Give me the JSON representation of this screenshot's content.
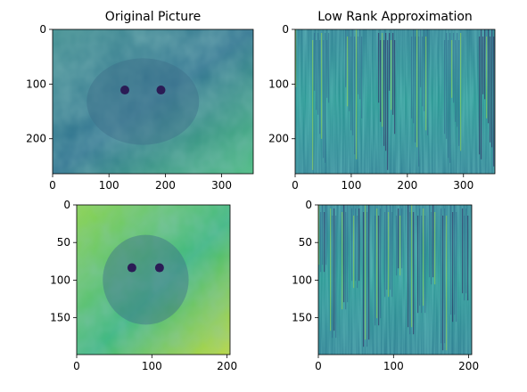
{
  "chart_data": [
    {
      "type": "heatmap",
      "title": "Original Picture",
      "xlim": [
        0,
        356
      ],
      "ylim": [
        264,
        0
      ],
      "xticks": [
        0,
        100,
        200,
        300
      ],
      "yticks": [
        0,
        100,
        200
      ],
      "colormap": "viridis"
    },
    {
      "type": "heatmap",
      "title": "Low Rank Approximation",
      "xlim": [
        0,
        356
      ],
      "ylim": [
        264,
        0
      ],
      "xticks": [
        0,
        100,
        200,
        300
      ],
      "yticks": [
        0,
        100,
        200
      ],
      "colormap": "viridis"
    },
    {
      "type": "heatmap",
      "title": "",
      "xlim": [
        0,
        204
      ],
      "ylim": [
        199,
        0
      ],
      "xticks": [
        0,
        100,
        200
      ],
      "yticks": [
        0,
        50,
        100,
        150
      ],
      "colormap": "viridis"
    },
    {
      "type": "heatmap",
      "title": "",
      "xlim": [
        0,
        204
      ],
      "ylim": [
        199,
        0
      ],
      "xticks": [
        0,
        100,
        200
      ],
      "yticks": [
        0,
        50,
        100,
        150
      ],
      "colormap": "viridis"
    }
  ]
}
